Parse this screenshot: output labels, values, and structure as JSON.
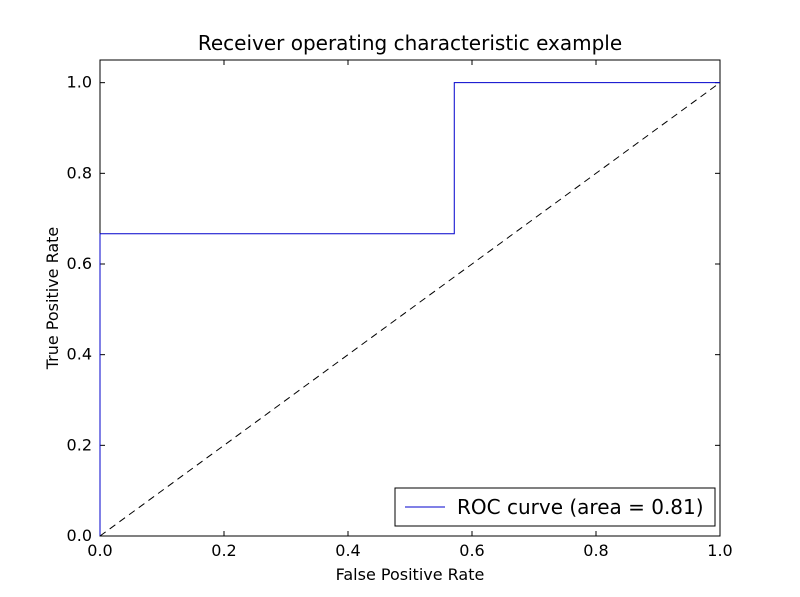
{
  "chart_data": {
    "type": "line",
    "title": "Receiver operating characteristic example",
    "xlabel": "False Positive Rate",
    "ylabel": "True Positive Rate",
    "xlim": [
      0.0,
      1.0
    ],
    "ylim": [
      0.0,
      1.05
    ],
    "xticks": [
      0.0,
      0.2,
      0.4,
      0.6,
      0.8,
      1.0
    ],
    "yticks": [
      0.0,
      0.2,
      0.4,
      0.6,
      0.8,
      1.0
    ],
    "grid": false,
    "legend_position": "lower right",
    "series": [
      {
        "name": "ROC curve (area = 0.81)",
        "color": "#0000cc",
        "style": "solid",
        "in_legend": true,
        "x": [
          0.0,
          0.0,
          0.5714,
          0.5714,
          1.0
        ],
        "y": [
          0.0,
          0.6667,
          0.6667,
          1.0,
          1.0
        ]
      },
      {
        "name": "chance-diagonal",
        "color": "#000000",
        "style": "dashed",
        "in_legend": false,
        "x": [
          0.0,
          1.0
        ],
        "y": [
          0.0,
          1.0
        ]
      }
    ],
    "legend": {
      "label": "ROC curve (area = 0.81)",
      "area": 0.81
    },
    "frame_color": "#000000",
    "background_color": "#ffffff"
  }
}
